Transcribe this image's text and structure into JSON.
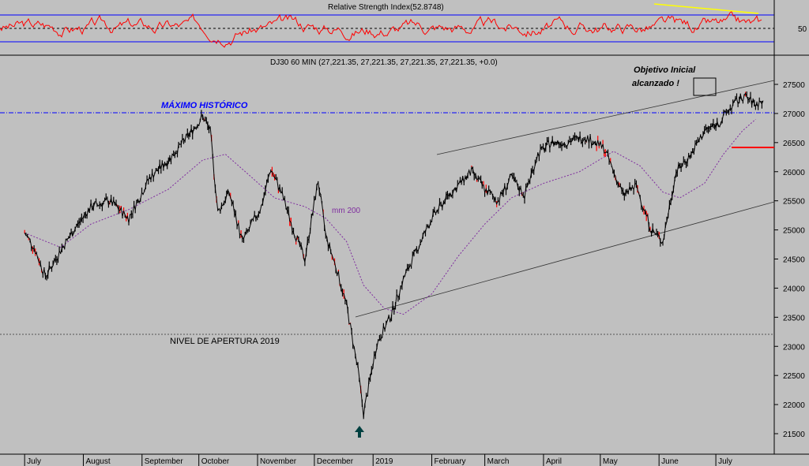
{
  "rsi_panel": {
    "title": "Relative Strength Index(52.8748)",
    "value": 52.8748,
    "levels": [
      70,
      50,
      30
    ],
    "axis_labels": [
      "50"
    ],
    "colors": {
      "line": "#ff0000",
      "bands": "#0000ff",
      "divergence": "#ffff00"
    }
  },
  "price_panel": {
    "header": "DJ30 60 MIN (27,221.35, 27,221.35, 27,221.35, 27,221.35, +0.0)",
    "annotations": {
      "max_hist": "MÁXIMO HISTÓRICO",
      "objective_line1": "Objetivo Inicial",
      "objective_line2": "alcanzado !",
      "ma_label": "mm 200",
      "open_level": "NIVEL DE APERTURA 2019"
    },
    "colors": {
      "candles": "#000000",
      "bearish_highlight": "#ff0000",
      "ma200": "#7f2d9f",
      "max_line": "#0000ff",
      "target_mark": "#ff0000",
      "arrow": "#004040"
    }
  },
  "chart_data": [
    {
      "type": "line",
      "title": "Relative Strength Index(52.8748)",
      "ylim": [
        0,
        100
      ],
      "levels": [
        70,
        50,
        30
      ]
    },
    {
      "type": "line",
      "title": "DJ30 60 MIN (27,221.35, 27,221.35, 27,221.35, 27,221.35, +0.0)",
      "ylim": [
        21300,
        27700
      ],
      "y_ticks": [
        21500,
        22000,
        22500,
        23000,
        23500,
        24000,
        24500,
        25000,
        25500,
        26000,
        26500,
        27000,
        27500
      ],
      "x_labels": [
        "July",
        "August",
        "September",
        "October",
        "November",
        "December",
        "2019",
        "February",
        "March",
        "April",
        "May",
        "June",
        "July"
      ],
      "reference_lines": [
        {
          "name": "MÁXIMO HISTÓRICO",
          "value": 26950
        },
        {
          "name": "NIVEL DE APERTURA 2019",
          "value": 23080
        }
      ],
      "series": [
        {
          "name": "DJ30 60 MIN",
          "x": [
            "2018-07-01",
            "2018-07-06",
            "2018-07-12",
            "2018-07-20",
            "2018-07-27",
            "2018-08-05",
            "2018-08-15",
            "2018-08-25",
            "2018-09-05",
            "2018-09-15",
            "2018-09-25",
            "2018-10-03",
            "2018-10-07",
            "2018-10-11",
            "2018-10-17",
            "2018-10-24",
            "2018-10-29",
            "2018-11-03",
            "2018-11-08",
            "2018-11-14",
            "2018-11-20",
            "2018-11-26",
            "2018-12-03",
            "2018-12-07",
            "2018-12-13",
            "2018-12-18",
            "2018-12-24",
            "2018-12-27",
            "2019-01-03",
            "2019-01-10",
            "2019-01-17",
            "2019-01-24",
            "2019-02-01",
            "2019-02-10",
            "2019-02-22",
            "2019-03-01",
            "2019-03-08",
            "2019-03-15",
            "2019-03-22",
            "2019-03-29",
            "2019-04-05",
            "2019-04-12",
            "2019-04-23",
            "2019-05-03",
            "2019-05-13",
            "2019-05-20",
            "2019-05-28",
            "2019-06-03",
            "2019-06-10",
            "2019-06-18",
            "2019-06-25",
            "2019-07-03",
            "2019-07-10",
            "2019-07-16",
            "2019-07-22",
            "2019-07-26"
          ],
          "y": [
            24950,
            24700,
            24200,
            24650,
            25000,
            25400,
            25500,
            25200,
            25900,
            26200,
            26600,
            26950,
            26700,
            25300,
            25650,
            24800,
            25100,
            25400,
            26050,
            25600,
            25000,
            24500,
            25850,
            24900,
            24300,
            23700,
            22600,
            21850,
            23050,
            23500,
            24150,
            24650,
            25200,
            25600,
            26000,
            25700,
            25500,
            25900,
            25600,
            26300,
            26500,
            26500,
            26600,
            26400,
            25600,
            25750,
            25000,
            24800,
            26000,
            26300,
            26700,
            26850,
            27150,
            27300,
            27150,
            27221
          ]
        },
        {
          "name": "mm 200",
          "x": [
            "2018-07-01",
            "2018-07-20",
            "2018-08-05",
            "2018-08-25",
            "2018-09-15",
            "2018-10-03",
            "2018-10-15",
            "2018-10-29",
            "2018-11-10",
            "2018-11-26",
            "2018-12-07",
            "2018-12-18",
            "2018-12-27",
            "2019-01-07",
            "2019-01-17",
            "2019-02-01",
            "2019-02-15",
            "2019-03-01",
            "2019-03-15",
            "2019-04-01",
            "2019-04-20",
            "2019-05-08",
            "2019-05-22",
            "2019-06-03",
            "2019-06-12",
            "2019-06-25",
            "2019-07-05",
            "2019-07-15",
            "2019-07-22"
          ],
          "y": [
            24950,
            24700,
            25100,
            25350,
            25700,
            26200,
            26300,
            25900,
            25550,
            25400,
            25200,
            24800,
            24050,
            23650,
            23550,
            23900,
            24550,
            25100,
            25550,
            25800,
            26000,
            26350,
            26100,
            25650,
            25550,
            25800,
            26300,
            26700,
            26900
          ]
        }
      ],
      "annotations": [
        "MÁXIMO HISTÓRICO",
        "Objetivo Inicial",
        "alcanzado !",
        "mm 200",
        "NIVEL DE APERTURA 2019"
      ]
    }
  ]
}
